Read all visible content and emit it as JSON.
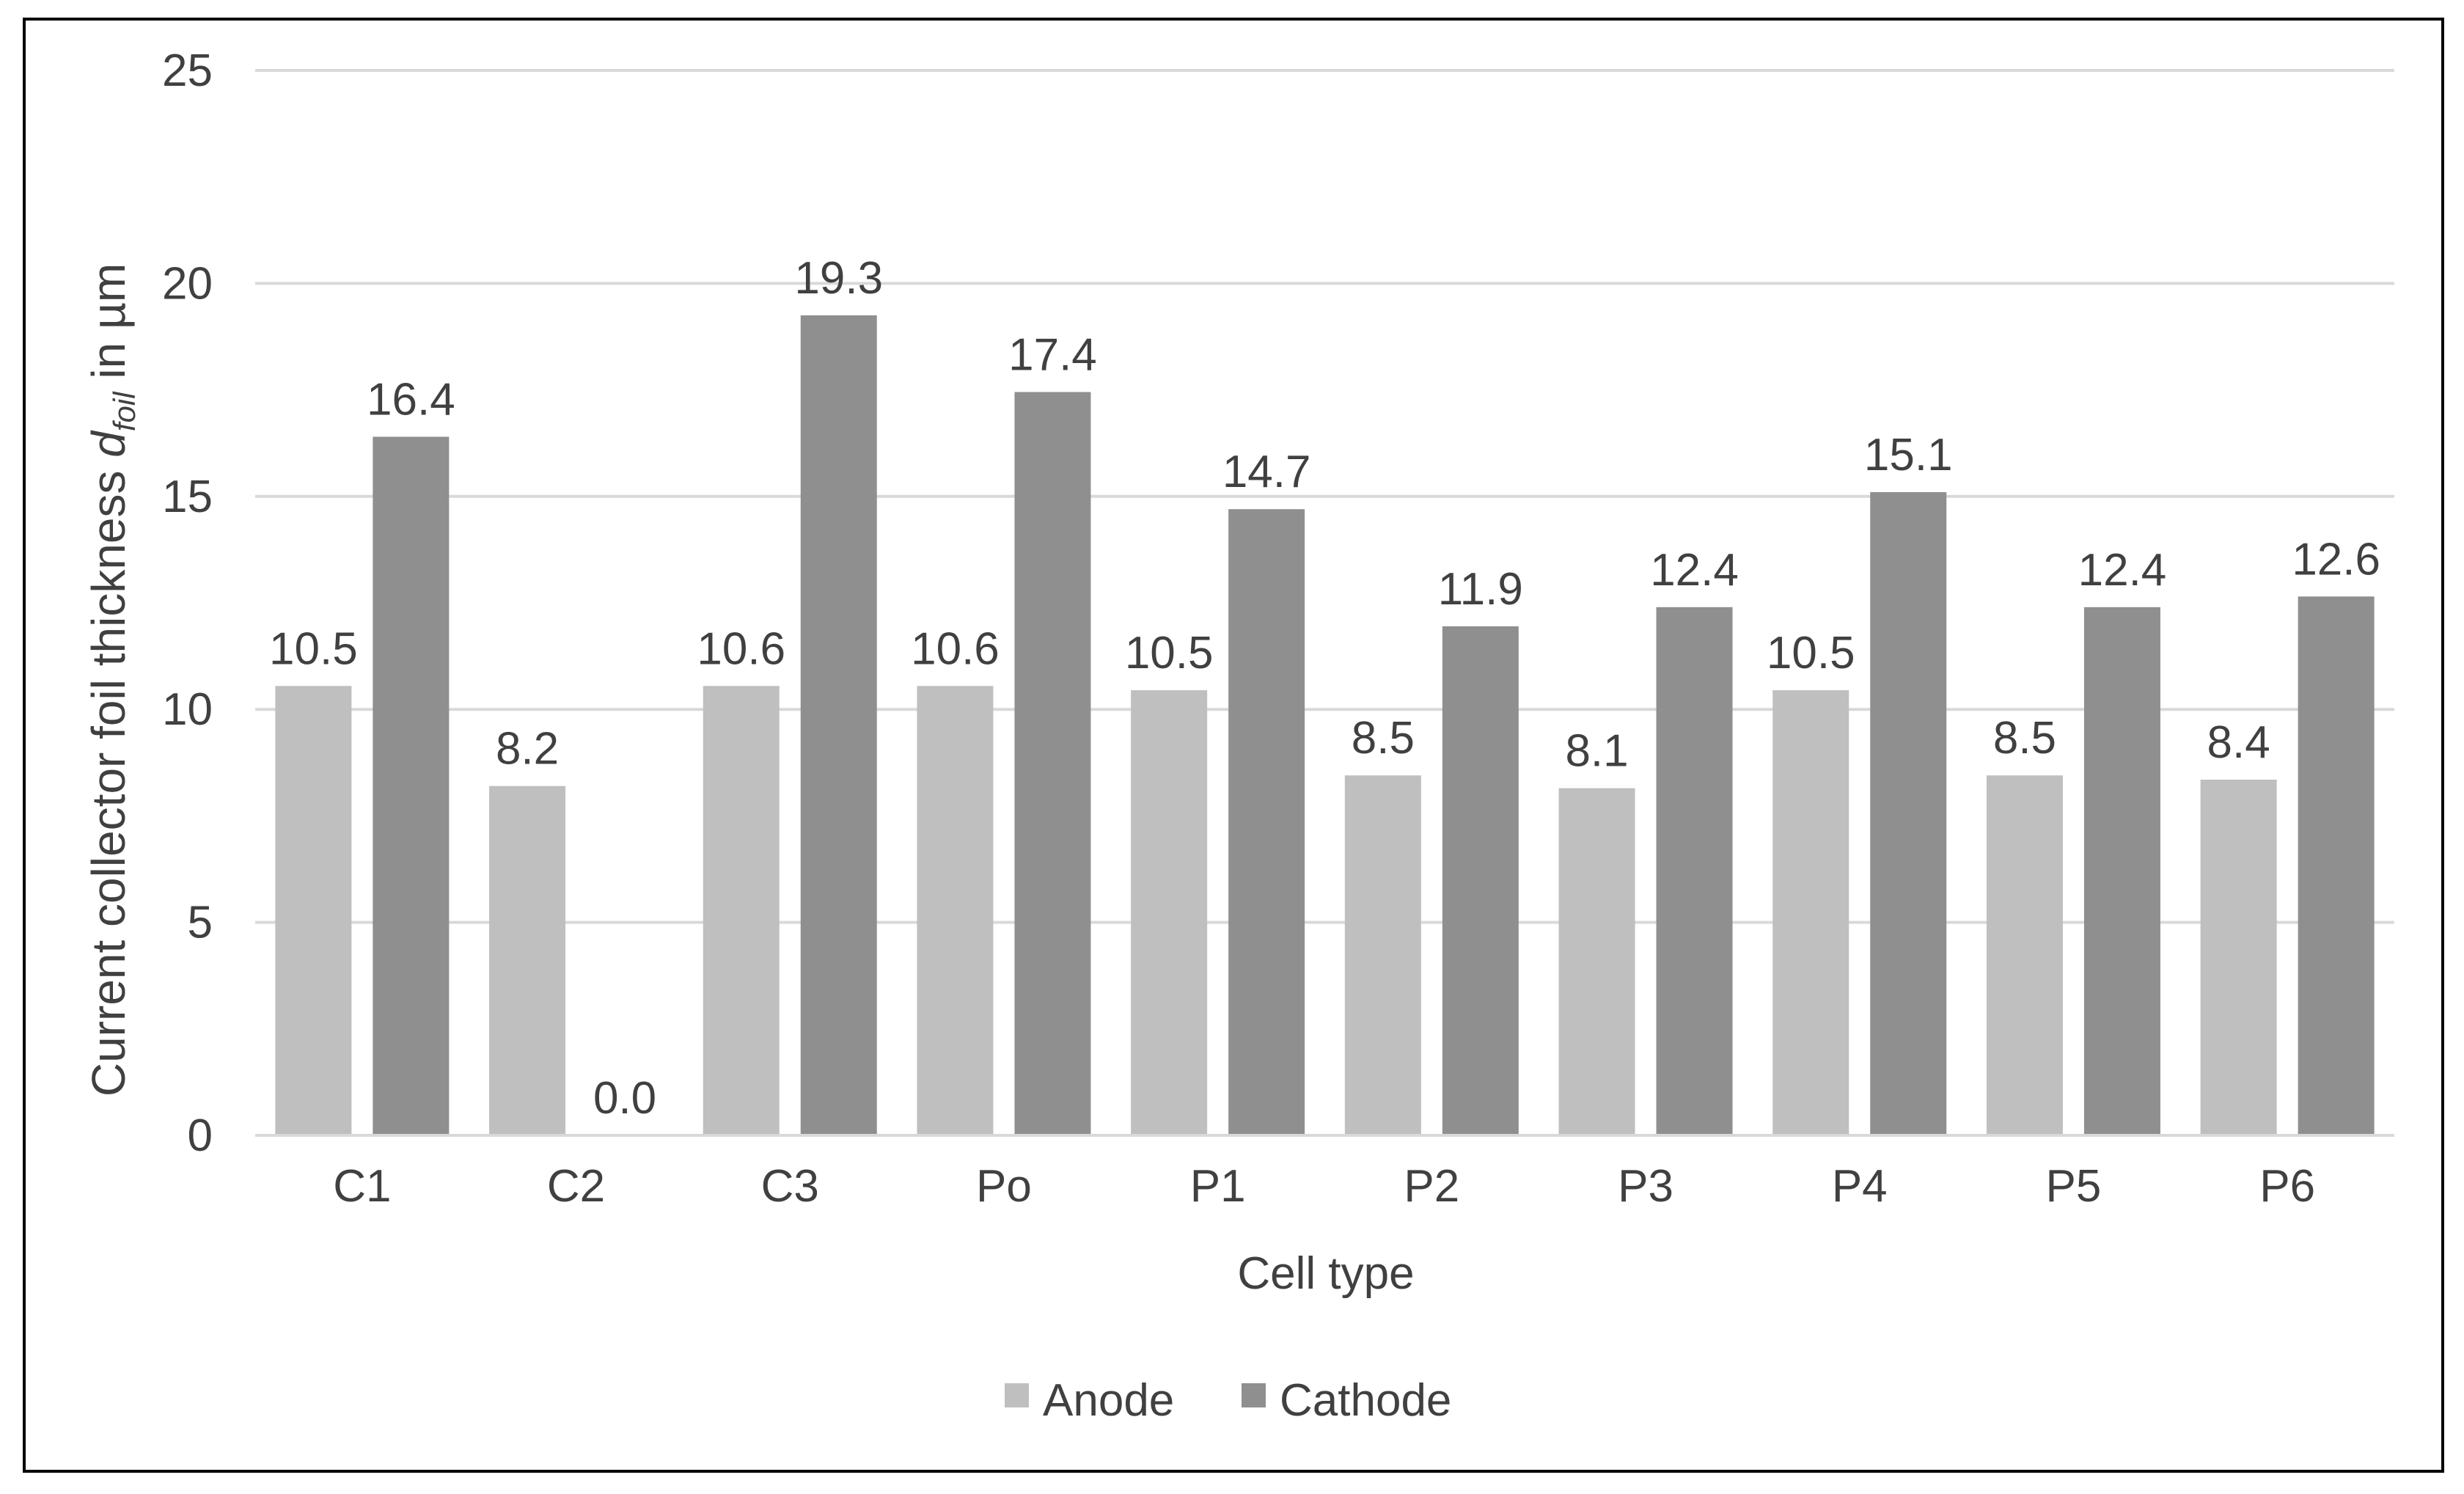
{
  "chart_data": {
    "type": "bar",
    "title": "",
    "xlabel": "Cell type",
    "ylabel_main": "Current collector foil thickness ",
    "ylabel_symbol": "d",
    "ylabel_subscript": "foil",
    "ylabel_suffix": " in µm",
    "categories": [
      "C1",
      "C2",
      "C3",
      "Po",
      "P1",
      "P2",
      "P3",
      "P4",
      "P5",
      "P6"
    ],
    "series": [
      {
        "name": "Anode",
        "color": "#bfbfbf",
        "values": [
          10.5,
          8.2,
          10.6,
          10.6,
          10.5,
          8.5,
          8.1,
          10.5,
          8.5,
          8.4
        ],
        "shown": [
          10.55,
          8.2,
          10.55,
          10.55,
          10.45,
          8.45,
          8.15,
          10.45,
          8.45,
          8.35
        ],
        "labels": [
          "10.5",
          "8.2",
          "10.6",
          "10.6",
          "10.5",
          "8.5",
          "8.1",
          "10.5",
          "8.5",
          "8.4"
        ]
      },
      {
        "name": "Cathode",
        "color": "#8f8f8f",
        "values": [
          16.4,
          0.0,
          19.3,
          17.4,
          14.7,
          11.9,
          12.4,
          15.1,
          12.4,
          12.6
        ],
        "shown": [
          16.4,
          0.0,
          19.25,
          17.45,
          14.7,
          11.95,
          12.4,
          15.1,
          12.4,
          12.65
        ],
        "labels": [
          "16.4",
          "0.0",
          "19.3",
          "17.4",
          "14.7",
          "11.9",
          "12.4",
          "15.1",
          "12.4",
          "12.6"
        ]
      }
    ],
    "ylim": [
      0,
      25
    ],
    "yticks": [
      "0",
      "5",
      "10",
      "15",
      "20",
      "25"
    ],
    "grid": true,
    "legend_position": "bottom"
  }
}
